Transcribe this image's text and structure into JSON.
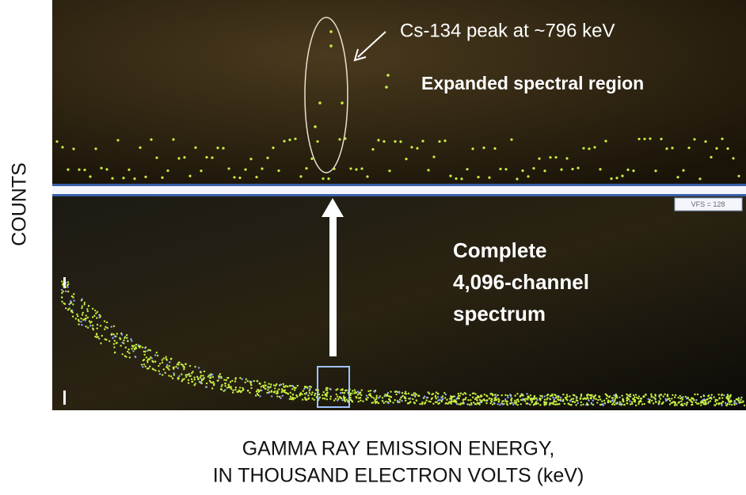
{
  "axis_labels": {
    "y": "COUNTS",
    "x": [
      "GAMMA RAY EMISSION ENERGY,",
      "IN THOUSAND ELECTRON VOLTS (keV)"
    ]
  },
  "annotations": {
    "peak": "Cs-134 peak at ~796 keV",
    "expanded": "Expanded spectral region",
    "complete": [
      "Complete",
      "4,096-channel",
      "spectrum"
    ]
  },
  "display": {
    "scale_box": "VFS = 128"
  }
}
